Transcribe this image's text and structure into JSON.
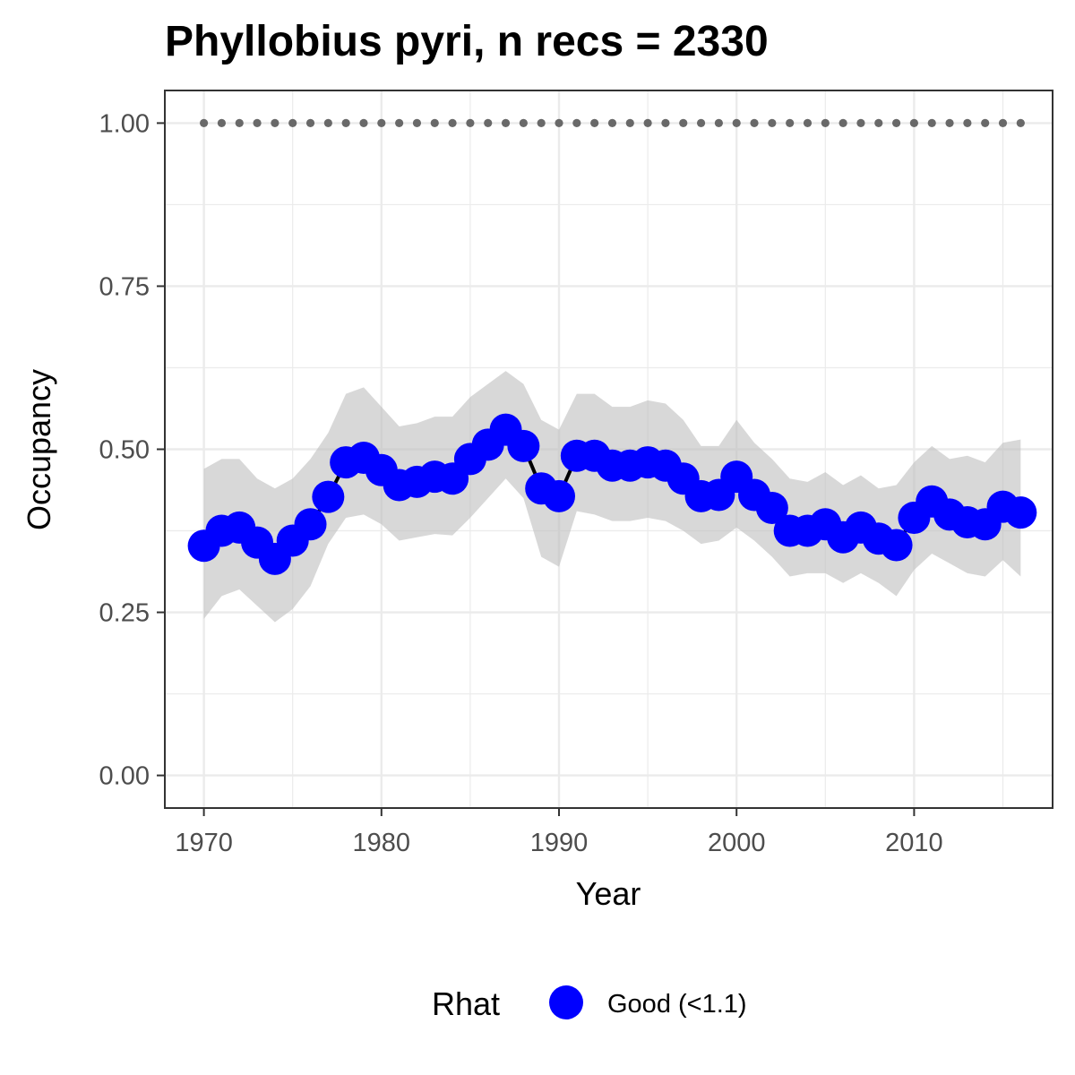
{
  "chart_data": {
    "type": "line",
    "title": "Phyllobius pyri, n recs = 2330",
    "xlabel": "Year",
    "ylabel": "Occupancy",
    "xlim": [
      1967.8,
      2017.8
    ],
    "ylim": [
      -0.05,
      1.05
    ],
    "x_ticks": [
      1970,
      1980,
      1990,
      2000,
      2010
    ],
    "x_tick_labels": [
      "1970",
      "1980",
      "1990",
      "2000",
      "2010"
    ],
    "y_ticks": [
      0,
      0.25,
      0.5,
      0.75,
      1.0
    ],
    "y_tick_labels": [
      "0.00",
      "0.25",
      "0.50",
      "0.75",
      "1.00"
    ],
    "grid": true,
    "legend": {
      "title": "Rhat",
      "position": "bottom",
      "entries": [
        "Good (<1.1)"
      ]
    },
    "x": [
      1970,
      1971,
      1972,
      1973,
      1974,
      1975,
      1976,
      1977,
      1978,
      1979,
      1980,
      1981,
      1982,
      1983,
      1984,
      1985,
      1986,
      1987,
      1988,
      1989,
      1990,
      1991,
      1992,
      1993,
      1994,
      1995,
      1996,
      1997,
      1998,
      1999,
      2000,
      2001,
      2002,
      2003,
      2004,
      2005,
      2006,
      2007,
      2008,
      2009,
      2010,
      2011,
      2012,
      2013,
      2014,
      2015,
      2016
    ],
    "series": [
      {
        "name": "Good (<1.1)",
        "values": [
          0.352,
          0.375,
          0.38,
          0.357,
          0.332,
          0.36,
          0.385,
          0.427,
          0.48,
          0.487,
          0.468,
          0.445,
          0.45,
          0.458,
          0.455,
          0.485,
          0.507,
          0.53,
          0.505,
          0.44,
          0.428,
          0.49,
          0.49,
          0.475,
          0.475,
          0.48,
          0.475,
          0.455,
          0.428,
          0.43,
          0.458,
          0.43,
          0.41,
          0.375,
          0.375,
          0.385,
          0.365,
          0.38,
          0.363,
          0.353,
          0.395,
          0.42,
          0.4,
          0.388,
          0.385,
          0.412,
          0.403
        ],
        "lower": [
          0.24,
          0.275,
          0.285,
          0.26,
          0.235,
          0.255,
          0.29,
          0.355,
          0.395,
          0.4,
          0.385,
          0.36,
          0.365,
          0.37,
          0.368,
          0.395,
          0.425,
          0.455,
          0.425,
          0.335,
          0.32,
          0.405,
          0.4,
          0.39,
          0.39,
          0.395,
          0.39,
          0.375,
          0.355,
          0.36,
          0.38,
          0.36,
          0.335,
          0.305,
          0.31,
          0.31,
          0.295,
          0.31,
          0.295,
          0.275,
          0.315,
          0.34,
          0.325,
          0.31,
          0.305,
          0.33,
          0.305
        ],
        "upper": [
          0.47,
          0.485,
          0.485,
          0.455,
          0.44,
          0.455,
          0.485,
          0.525,
          0.585,
          0.595,
          0.565,
          0.535,
          0.54,
          0.55,
          0.55,
          0.58,
          0.6,
          0.62,
          0.6,
          0.545,
          0.53,
          0.585,
          0.585,
          0.565,
          0.565,
          0.575,
          0.57,
          0.545,
          0.505,
          0.505,
          0.545,
          0.51,
          0.485,
          0.455,
          0.45,
          0.465,
          0.445,
          0.46,
          0.44,
          0.445,
          0.48,
          0.505,
          0.485,
          0.49,
          0.48,
          0.51,
          0.515
        ]
      },
      {
        "name": "",
        "values": [
          1,
          1,
          1,
          1,
          1,
          1,
          1,
          1,
          1,
          1,
          1,
          1,
          1,
          1,
          1,
          1,
          1,
          1,
          1,
          1,
          1,
          1,
          1,
          1,
          1,
          1,
          1,
          1,
          1,
          1,
          1,
          1,
          1,
          1,
          1,
          1,
          1,
          1,
          1,
          1,
          1,
          1,
          1,
          1,
          1,
          1,
          1
        ]
      }
    ],
    "colors": {
      "points": "#0000ff",
      "line": "#000000",
      "ribbon": "#bebebe",
      "reference_dots": "#696969",
      "grid": "#ebebeb",
      "panel_border": "#333333"
    }
  }
}
